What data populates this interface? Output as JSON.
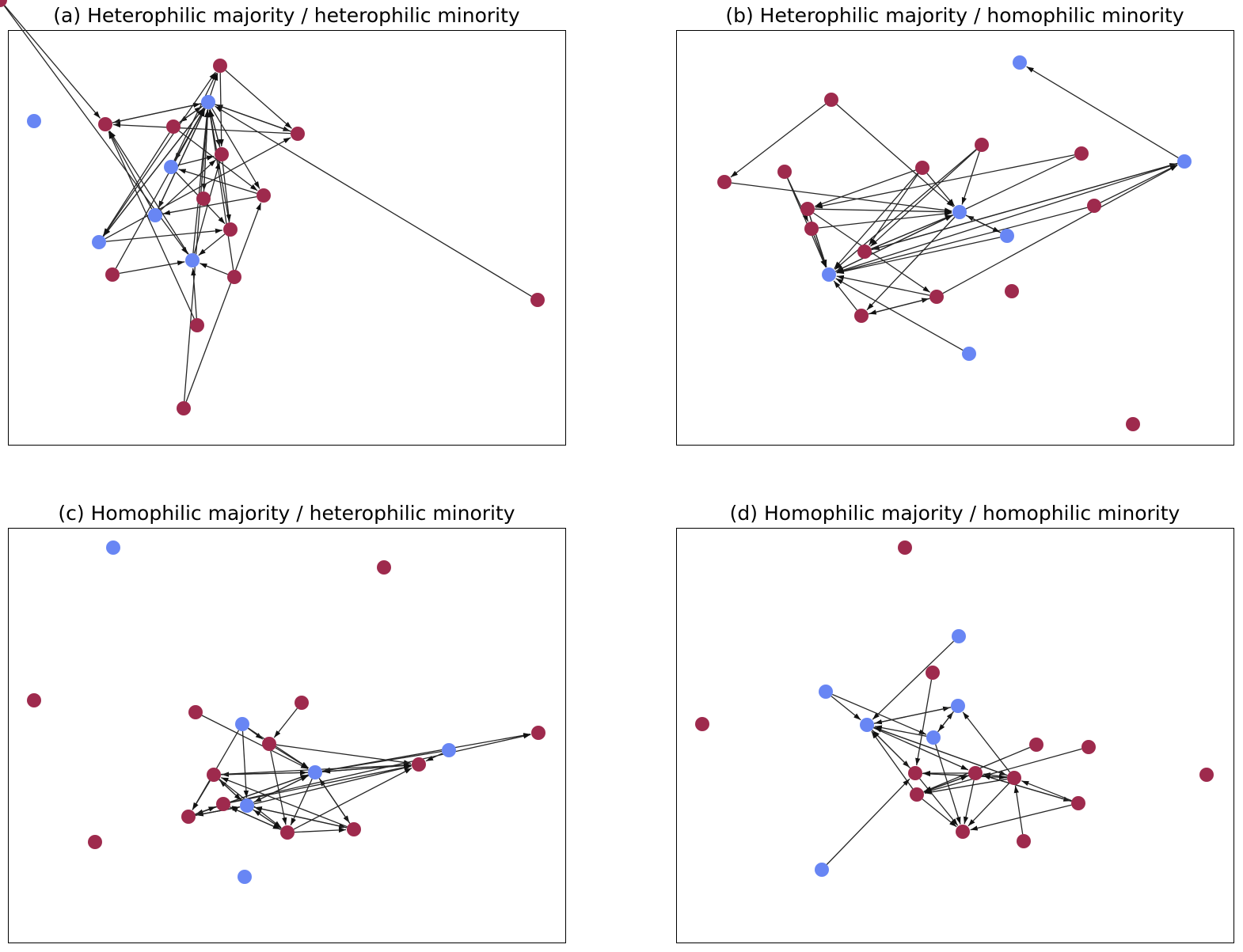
{
  "colors": {
    "majority": "#9e2a4d",
    "minority": "#6886f4",
    "edge": "#262626"
  },
  "panels": [
    {
      "title": "(a) Heterophilic majority / heterophilic minority",
      "nodes": [
        {
          "group": "minority"
        },
        {
          "group": "majority"
        },
        {
          "group": "minority"
        },
        {
          "group": "majority"
        },
        {
          "group": "majority"
        },
        {
          "group": "majority"
        },
        {
          "group": "majority"
        },
        {
          "group": "minority"
        },
        {
          "group": "majority"
        },
        {
          "group": "majority"
        },
        {
          "group": "minority"
        },
        {
          "group": "minority"
        },
        {
          "group": "majority"
        },
        {
          "group": "minority"
        },
        {
          "group": "majority"
        },
        {
          "group": "majority"
        },
        {
          "group": "majority"
        },
        {
          "group": "majority"
        },
        {
          "group": "majority"
        },
        {
          "group": "majority"
        }
      ],
      "edges": [
        [
          2,
          1
        ],
        [
          2,
          3
        ],
        [
          1,
          2
        ],
        [
          2,
          5
        ],
        [
          5,
          2
        ],
        [
          2,
          6
        ],
        [
          6,
          2
        ],
        [
          2,
          4
        ],
        [
          4,
          2
        ],
        [
          2,
          7
        ],
        [
          7,
          2
        ],
        [
          2,
          8
        ],
        [
          8,
          2
        ],
        [
          2,
          9
        ],
        [
          2,
          10
        ],
        [
          10,
          2
        ],
        [
          2,
          11
        ],
        [
          11,
          2
        ],
        [
          13,
          2
        ],
        [
          15,
          2
        ],
        [
          17,
          2
        ],
        [
          12,
          2
        ],
        [
          18,
          2
        ],
        [
          14,
          2
        ],
        [
          13,
          1
        ],
        [
          19,
          1
        ],
        [
          16,
          1
        ],
        [
          3,
          5
        ],
        [
          3,
          6
        ],
        [
          7,
          3
        ],
        [
          11,
          3
        ],
        [
          7,
          5
        ],
        [
          9,
          10
        ],
        [
          4,
          9
        ],
        [
          9,
          7
        ],
        [
          10,
          1
        ],
        [
          4,
          11
        ],
        [
          11,
          12
        ],
        [
          12,
          13
        ],
        [
          14,
          13
        ],
        [
          15,
          13
        ],
        [
          16,
          13
        ],
        [
          19,
          13
        ],
        [
          18,
          9
        ],
        [
          11,
          6
        ],
        [
          7,
          12
        ],
        [
          5,
          12
        ],
        [
          10,
          5
        ],
        [
          6,
          1
        ],
        [
          13,
          5
        ]
      ]
    },
    {
      "title": "(b) Heterophilic majority / homophilic minority",
      "nodes": [
        {
          "group": "minority"
        },
        {
          "group": "majority"
        },
        {
          "group": "majority"
        },
        {
          "group": "majority"
        },
        {
          "group": "minority"
        },
        {
          "group": "majority"
        },
        {
          "group": "majority"
        },
        {
          "group": "majority"
        },
        {
          "group": "minority"
        },
        {
          "group": "majority"
        },
        {
          "group": "majority"
        },
        {
          "group": "minority"
        },
        {
          "group": "majority"
        },
        {
          "group": "minority"
        },
        {
          "group": "majority"
        },
        {
          "group": "majority"
        },
        {
          "group": "majority"
        },
        {
          "group": "minority"
        },
        {
          "group": "majority"
        },
        {
          "group": "majority"
        }
      ],
      "edges": [
        [
          1,
          5
        ],
        [
          1,
          8
        ],
        [
          3,
          8
        ],
        [
          2,
          8
        ],
        [
          4,
          0
        ],
        [
          3,
          13
        ],
        [
          2,
          13
        ],
        [
          7,
          13
        ],
        [
          6,
          13
        ],
        [
          10,
          13
        ],
        [
          11,
          13
        ],
        [
          9,
          13
        ],
        [
          12,
          13
        ],
        [
          15,
          13
        ],
        [
          16,
          13
        ],
        [
          17,
          13
        ],
        [
          13,
          8
        ],
        [
          10,
          8
        ],
        [
          9,
          8
        ],
        [
          14,
          8
        ],
        [
          11,
          8
        ],
        [
          8,
          11
        ],
        [
          4,
          14
        ],
        [
          2,
          14
        ],
        [
          3,
          14
        ],
        [
          6,
          10
        ],
        [
          10,
          13
        ],
        [
          14,
          8
        ],
        [
          12,
          4
        ],
        [
          15,
          4
        ],
        [
          9,
          15
        ],
        [
          16,
          15
        ],
        [
          15,
          16
        ],
        [
          7,
          9
        ],
        [
          3,
          9
        ],
        [
          14,
          4
        ],
        [
          4,
          13
        ],
        [
          9,
          13
        ],
        [
          8,
          16
        ],
        [
          5,
          8
        ]
      ]
    },
    {
      "title": "(c) Homophilic majority / heterophilic minority",
      "nodes": [
        {
          "group": "minority"
        },
        {
          "group": "majority"
        },
        {
          "group": "majority"
        },
        {
          "group": "majority"
        },
        {
          "group": "majority"
        },
        {
          "group": "minority"
        },
        {
          "group": "majority"
        },
        {
          "group": "minority"
        },
        {
          "group": "majority"
        },
        {
          "group": "majority"
        },
        {
          "group": "minority"
        },
        {
          "group": "majority"
        },
        {
          "group": "majority"
        },
        {
          "group": "minority"
        },
        {
          "group": "majority"
        },
        {
          "group": "majority"
        },
        {
          "group": "majority"
        },
        {
          "group": "majority"
        },
        {
          "group": "minority"
        }
      ],
      "edges": [
        [
          5,
          6
        ],
        [
          5,
          10
        ],
        [
          5,
          13
        ],
        [
          5,
          14
        ],
        [
          6,
          10
        ],
        [
          6,
          15
        ],
        [
          4,
          6
        ],
        [
          3,
          10
        ],
        [
          6,
          8
        ],
        [
          8,
          10
        ],
        [
          10,
          15
        ],
        [
          10,
          8
        ],
        [
          10,
          13
        ],
        [
          13,
          10
        ],
        [
          10,
          11
        ],
        [
          11,
          10
        ],
        [
          10,
          14
        ],
        [
          14,
          10
        ],
        [
          10,
          16
        ],
        [
          16,
          10
        ],
        [
          13,
          14
        ],
        [
          14,
          13
        ],
        [
          13,
          15
        ],
        [
          15,
          13
        ],
        [
          13,
          11
        ],
        [
          11,
          13
        ],
        [
          13,
          16
        ],
        [
          16,
          13
        ],
        [
          15,
          12
        ],
        [
          12,
          15
        ],
        [
          7,
          10
        ],
        [
          7,
          8
        ],
        [
          15,
          8
        ],
        [
          11,
          8
        ],
        [
          12,
          8
        ],
        [
          10,
          9
        ],
        [
          12,
          9
        ],
        [
          13,
          8
        ],
        [
          14,
          13
        ],
        [
          11,
          15
        ],
        [
          16,
          11
        ],
        [
          11,
          14
        ],
        [
          15,
          16
        ],
        [
          14,
          12
        ]
      ]
    },
    {
      "title": "(d) Homophilic majority / homophilic minority",
      "nodes": [
        {
          "group": "majority"
        },
        {
          "group": "minority"
        },
        {
          "group": "majority"
        },
        {
          "group": "minority"
        },
        {
          "group": "majority"
        },
        {
          "group": "minority"
        },
        {
          "group": "minority"
        },
        {
          "group": "minority"
        },
        {
          "group": "majority"
        },
        {
          "group": "majority"
        },
        {
          "group": "majority"
        },
        {
          "group": "majority"
        },
        {
          "group": "majority"
        },
        {
          "group": "majority"
        },
        {
          "group": "majority"
        },
        {
          "group": "majority"
        },
        {
          "group": "majority"
        },
        {
          "group": "minority"
        },
        {
          "group": "majority"
        }
      ],
      "edges": [
        [
          1,
          6
        ],
        [
          3,
          6
        ],
        [
          3,
          7
        ],
        [
          6,
          5
        ],
        [
          5,
          6
        ],
        [
          7,
          5
        ],
        [
          5,
          7
        ],
        [
          7,
          6
        ],
        [
          7,
          16
        ],
        [
          6,
          10
        ],
        [
          6,
          11
        ],
        [
          6,
          12
        ],
        [
          10,
          6
        ],
        [
          12,
          6
        ],
        [
          13,
          6
        ],
        [
          2,
          10
        ],
        [
          11,
          13
        ],
        [
          13,
          11
        ],
        [
          12,
          13
        ],
        [
          12,
          11
        ],
        [
          12,
          10
        ],
        [
          10,
          12
        ],
        [
          11,
          14
        ],
        [
          14,
          11
        ],
        [
          10,
          16
        ],
        [
          12,
          16
        ],
        [
          13,
          16
        ],
        [
          14,
          16
        ],
        [
          15,
          12
        ],
        [
          9,
          13
        ],
        [
          8,
          13
        ],
        [
          11,
          10
        ],
        [
          12,
          5
        ],
        [
          17,
          10
        ],
        [
          14,
          12
        ],
        [
          11,
          16
        ]
      ]
    }
  ]
}
